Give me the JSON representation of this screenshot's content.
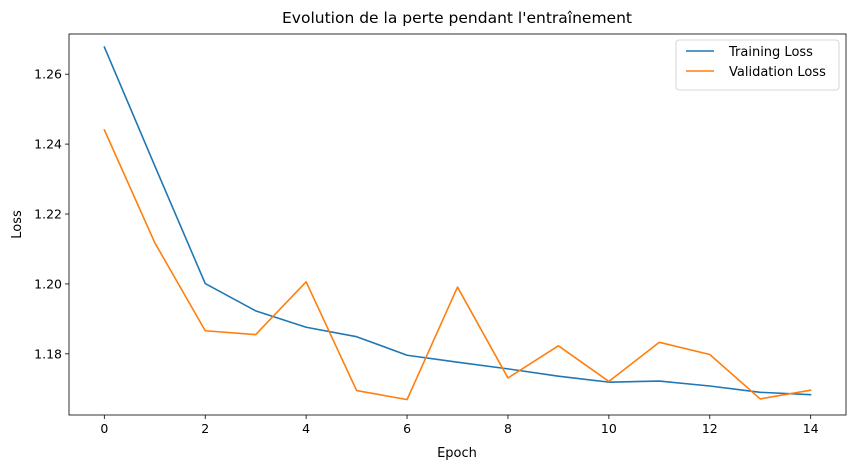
{
  "chart_data": {
    "type": "line",
    "title": "Evolution de la perte pendant l'entraînement",
    "xlabel": "Epoch",
    "ylabel": "Loss",
    "x": [
      0,
      1,
      2,
      3,
      4,
      5,
      6,
      7,
      8,
      9,
      10,
      11,
      12,
      13,
      14
    ],
    "xlim": [
      -0.7,
      14.7
    ],
    "ylim": [
      1.1625,
      1.2715
    ],
    "xticks": [
      0,
      2,
      4,
      6,
      8,
      10,
      12,
      14
    ],
    "yticks": [
      1.18,
      1.2,
      1.22,
      1.24,
      1.26
    ],
    "xtick_labels": [
      "0",
      "2",
      "4",
      "6",
      "8",
      "10",
      "12",
      "14"
    ],
    "ytick_labels": [
      "1.18",
      "1.20",
      "1.22",
      "1.24",
      "1.26"
    ],
    "grid": false,
    "legend_position": "top-right",
    "series": [
      {
        "name": "Training Loss",
        "color": "#1f77b4",
        "values": [
          1.2678,
          1.2338,
          1.2001,
          1.1923,
          1.1876,
          1.1849,
          1.1796,
          1.1776,
          1.1757,
          1.1736,
          1.1719,
          1.1722,
          1.1708,
          1.169,
          1.1683
        ]
      },
      {
        "name": "Validation Loss",
        "color": "#ff7f0e",
        "values": [
          1.2441,
          1.2118,
          1.1866,
          1.1855,
          1.2006,
          1.1695,
          1.1669,
          1.1991,
          1.1731,
          1.1823,
          1.1721,
          1.1833,
          1.1798,
          1.1671,
          1.1696
        ]
      }
    ]
  }
}
